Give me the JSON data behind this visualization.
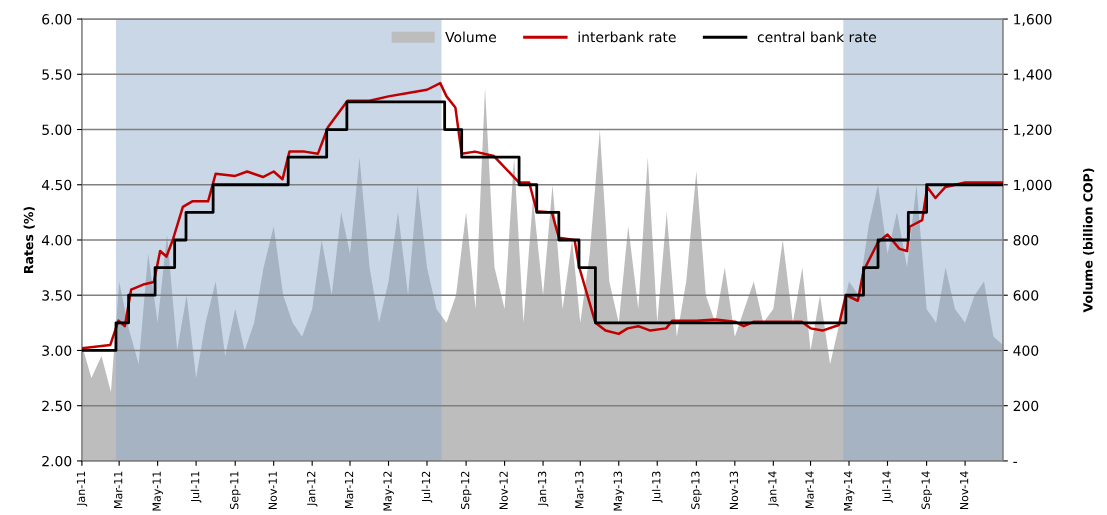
{
  "chart_data": {
    "type": "line",
    "ylabel": "Rates (%)",
    "y2label": "Volume (billion COP)",
    "xlim": [
      "2011-01-01",
      "2014-12-31"
    ],
    "xticks": [
      {
        "value": "2011-01-01",
        "label": "Jan-11"
      },
      {
        "value": "2011-03-01",
        "label": "Mar-11"
      },
      {
        "value": "2011-05-01",
        "label": "May-11"
      },
      {
        "value": "2011-07-01",
        "label": "Jul-11"
      },
      {
        "value": "2011-09-01",
        "label": "Sep-11"
      },
      {
        "value": "2011-11-01",
        "label": "Nov-11"
      },
      {
        "value": "2012-01-01",
        "label": "Jan-12"
      },
      {
        "value": "2012-03-01",
        "label": "Mar-12"
      },
      {
        "value": "2012-05-01",
        "label": "May-12"
      },
      {
        "value": "2012-07-01",
        "label": "Jul-12"
      },
      {
        "value": "2012-09-01",
        "label": "Sep-12"
      },
      {
        "value": "2012-11-01",
        "label": "Nov-12"
      },
      {
        "value": "2013-01-01",
        "label": "Jan-13"
      },
      {
        "value": "2013-03-01",
        "label": "Mar-13"
      },
      {
        "value": "2013-05-01",
        "label": "May-13"
      },
      {
        "value": "2013-07-01",
        "label": "Jul-13"
      },
      {
        "value": "2013-09-01",
        "label": "Sep-13"
      },
      {
        "value": "2013-11-01",
        "label": "Nov-13"
      },
      {
        "value": "2014-01-01",
        "label": "Jan-14"
      },
      {
        "value": "2014-03-01",
        "label": "Mar-14"
      },
      {
        "value": "2014-05-01",
        "label": "May-14"
      },
      {
        "value": "2014-07-01",
        "label": "Jul-14"
      },
      {
        "value": "2014-09-01",
        "label": "Sep-14"
      },
      {
        "value": "2014-11-01",
        "label": "Nov-14"
      }
    ],
    "ylim": [
      2.0,
      6.0
    ],
    "yticks": [
      {
        "value": 2.0,
        "label": "2.00"
      },
      {
        "value": 2.5,
        "label": "2.50"
      },
      {
        "value": 3.0,
        "label": "3.00"
      },
      {
        "value": 3.5,
        "label": "3.50"
      },
      {
        "value": 4.0,
        "label": "4.00"
      },
      {
        "value": 4.5,
        "label": "4.50"
      },
      {
        "value": 5.0,
        "label": "5.00"
      },
      {
        "value": 5.5,
        "label": "5.50"
      },
      {
        "value": 6.0,
        "label": "6.00"
      }
    ],
    "y2lim": [
      0,
      1600
    ],
    "y2ticks": [
      {
        "value": 0,
        "label": "-"
      },
      200,
      400,
      600,
      800,
      {
        "value": 1000,
        "label": "1,000"
      },
      {
        "value": 1200,
        "label": "1,200"
      },
      {
        "value": 1400,
        "label": "1,400"
      },
      {
        "value": 1600,
        "label": "1,600"
      }
    ],
    "grid": "y",
    "legend": "top",
    "bands": [
      {
        "axis": "x",
        "from": "2011-02-24",
        "to": "2012-07-24",
        "color": "#8aa6c8"
      },
      {
        "axis": "x",
        "from": "2014-04-22",
        "to": "2014-12-31",
        "color": "#8aa6c8"
      }
    ],
    "series": [
      {
        "name": "Volume",
        "type": "area",
        "axis": "y2",
        "color": "#bdbdbd",
        "x": [
          "2011-01-01",
          "2011-01-16",
          "2011-02-01",
          "2011-02-16",
          "2011-03-01",
          "2011-03-16",
          "2011-04-01",
          "2011-04-16",
          "2011-05-01",
          "2011-05-16",
          "2011-06-01",
          "2011-06-16",
          "2011-07-01",
          "2011-07-16",
          "2011-08-01",
          "2011-08-16",
          "2011-09-01",
          "2011-09-16",
          "2011-10-01",
          "2011-10-16",
          "2011-11-01",
          "2011-11-16",
          "2011-12-01",
          "2011-12-16",
          "2012-01-01",
          "2012-01-16",
          "2012-02-01",
          "2012-02-16",
          "2012-03-01",
          "2012-03-16",
          "2012-04-01",
          "2012-04-16",
          "2012-05-01",
          "2012-05-16",
          "2012-06-01",
          "2012-06-16",
          "2012-07-01",
          "2012-07-16",
          "2012-08-01",
          "2012-08-16",
          "2012-09-01",
          "2012-09-16",
          "2012-10-01",
          "2012-10-16",
          "2012-11-01",
          "2012-11-16",
          "2012-12-01",
          "2012-12-16",
          "2013-01-01",
          "2013-01-16",
          "2013-02-01",
          "2013-02-16",
          "2013-03-01",
          "2013-03-16",
          "2013-04-01",
          "2013-04-16",
          "2013-05-01",
          "2013-05-16",
          "2013-06-01",
          "2013-06-16",
          "2013-07-01",
          "2013-07-16",
          "2013-08-01",
          "2013-08-16",
          "2013-09-01",
          "2013-09-16",
          "2013-10-01",
          "2013-10-16",
          "2013-11-01",
          "2013-11-16",
          "2013-12-01",
          "2013-12-16",
          "2014-01-01",
          "2014-01-16",
          "2014-02-01",
          "2014-02-16",
          "2014-03-01",
          "2014-03-16",
          "2014-04-01",
          "2014-04-16",
          "2014-05-01",
          "2014-05-16",
          "2014-06-01",
          "2014-06-16",
          "2014-07-01",
          "2014-07-16",
          "2014-08-01",
          "2014-08-16",
          "2014-09-01",
          "2014-09-16",
          "2014-10-01",
          "2014-10-16",
          "2014-11-01",
          "2014-11-16",
          "2014-12-01",
          "2014-12-16",
          "2014-12-31"
        ],
        "values": [
          420,
          300,
          380,
          250,
          650,
          480,
          350,
          750,
          500,
          820,
          400,
          600,
          300,
          500,
          650,
          380,
          550,
          400,
          500,
          700,
          850,
          600,
          500,
          450,
          550,
          800,
          600,
          900,
          750,
          1100,
          700,
          500,
          650,
          900,
          600,
          1000,
          700,
          550,
          500,
          600,
          900,
          550,
          1350,
          700,
          550,
          1100,
          500,
          950,
          600,
          1000,
          550,
          800,
          500,
          750,
          1200,
          650,
          500,
          850,
          550,
          1100,
          500,
          900,
          450,
          650,
          1050,
          600,
          500,
          700,
          450,
          550,
          650,
          500,
          550,
          800,
          500,
          700,
          400,
          600,
          350,
          500,
          650,
          600,
          850,
          1000,
          750,
          900,
          700,
          1000,
          550,
          500,
          700,
          550,
          500,
          600,
          650,
          450,
          420
        ]
      },
      {
        "name": "interbank rate",
        "color": "#c00000",
        "x": [
          "2011-01-01",
          "2011-02-15",
          "2011-02-28",
          "2011-03-10",
          "2011-03-20",
          "2011-04-10",
          "2011-04-25",
          "2011-05-05",
          "2011-05-15",
          "2011-05-25",
          "2011-06-10",
          "2011-06-25",
          "2011-07-20",
          "2011-08-01",
          "2011-09-01",
          "2011-09-20",
          "2011-10-15",
          "2011-11-01",
          "2011-11-15",
          "2011-11-26",
          "2011-12-20",
          "2012-01-10",
          "2012-01-26",
          "2012-02-26",
          "2012-04-01",
          "2012-05-01",
          "2012-06-01",
          "2012-07-01",
          "2012-07-22",
          "2012-08-01",
          "2012-08-15",
          "2012-08-25",
          "2012-09-15",
          "2012-10-15",
          "2012-11-24",
          "2012-12-10",
          "2012-12-22",
          "2013-01-15",
          "2013-01-26",
          "2013-02-20",
          "2013-02-27",
          "2013-03-25",
          "2013-04-10",
          "2013-05-01",
          "2013-05-15",
          "2013-06-01",
          "2013-06-20",
          "2013-07-15",
          "2013-07-25",
          "2013-09-01",
          "2013-10-01",
          "2013-11-01",
          "2013-11-15",
          "2013-12-01",
          "2014-01-15",
          "2014-02-15",
          "2014-03-01",
          "2014-03-20",
          "2014-04-15",
          "2014-04-26",
          "2014-05-15",
          "2014-05-24",
          "2014-06-16",
          "2014-07-01",
          "2014-07-20",
          "2014-08-01",
          "2014-08-05",
          "2014-08-25",
          "2014-09-02",
          "2014-09-15",
          "2014-10-01",
          "2014-11-01",
          "2014-12-31"
        ],
        "values": [
          3.02,
          3.05,
          3.27,
          3.22,
          3.55,
          3.6,
          3.62,
          3.9,
          3.85,
          4.0,
          4.3,
          4.35,
          4.35,
          4.6,
          4.58,
          4.62,
          4.57,
          4.62,
          4.55,
          4.8,
          4.8,
          4.78,
          5.02,
          5.26,
          5.26,
          5.3,
          5.33,
          5.36,
          5.42,
          5.3,
          5.2,
          4.78,
          4.8,
          4.76,
          4.52,
          4.52,
          4.26,
          4.25,
          4.02,
          4.0,
          3.76,
          3.25,
          3.18,
          3.15,
          3.2,
          3.22,
          3.18,
          3.2,
          3.27,
          3.27,
          3.28,
          3.26,
          3.22,
          3.26,
          3.26,
          3.26,
          3.2,
          3.18,
          3.23,
          3.5,
          3.45,
          3.72,
          3.98,
          4.05,
          3.92,
          3.9,
          4.12,
          4.18,
          4.48,
          4.38,
          4.48,
          4.52,
          4.52
        ]
      },
      {
        "name": "central bank rate",
        "type": "step",
        "color": "#000000",
        "x": [
          "2011-01-01",
          "2011-02-24",
          "2011-03-16",
          "2011-04-27",
          "2011-05-28",
          "2011-06-15",
          "2011-07-28",
          "2011-11-24",
          "2012-01-24",
          "2012-02-25",
          "2012-07-29",
          "2012-08-25",
          "2012-11-24",
          "2012-12-22",
          "2013-01-26",
          "2013-02-27",
          "2013-03-25",
          "2014-04-26",
          "2014-05-24",
          "2014-06-16",
          "2014-08-03",
          "2014-09-01",
          "2014-12-31"
        ],
        "values": [
          3.0,
          3.25,
          3.5,
          3.75,
          4.0,
          4.25,
          4.5,
          4.75,
          5.0,
          5.25,
          5.0,
          4.75,
          4.5,
          4.25,
          4.0,
          3.75,
          3.25,
          3.5,
          3.75,
          4.0,
          4.25,
          4.5,
          4.5
        ]
      }
    ]
  }
}
